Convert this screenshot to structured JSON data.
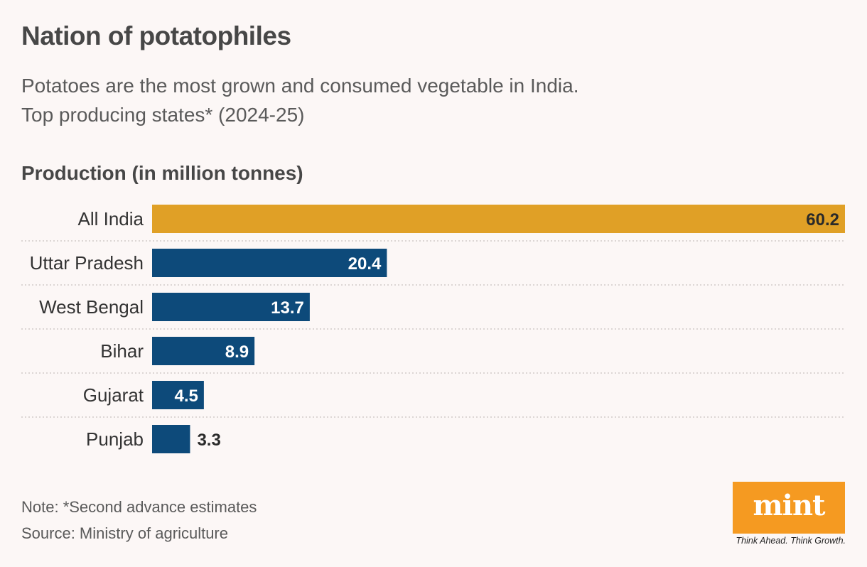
{
  "header": {
    "title": "Nation of potatophiles",
    "subtitle_line1": "Potatoes are the most grown and consumed vegetable in India.",
    "subtitle_line2": "Top producing states* (2024-25)"
  },
  "chart_data": {
    "type": "bar",
    "orientation": "horizontal",
    "title": "Production (in million tonnes)",
    "categories": [
      "All India",
      "Uttar Pradesh",
      "West Bengal",
      "Bihar",
      "Gujarat",
      "Punjab"
    ],
    "values": [
      60.2,
      20.4,
      13.7,
      8.9,
      4.5,
      3.3
    ],
    "value_labels": [
      "60.2",
      "20.4",
      "13.7",
      "8.9",
      "4.5",
      "3.3"
    ],
    "xlim": [
      0,
      60.2
    ],
    "colors": [
      "#e0a026",
      "#0d4a7a",
      "#0d4a7a",
      "#0d4a7a",
      "#0d4a7a",
      "#0d4a7a"
    ],
    "grid": false,
    "row_separators": true
  },
  "footer": {
    "note": "Note: *Second advance estimates",
    "source": "Source: Ministry of agriculture"
  },
  "brand": {
    "logo_text": "mint",
    "tagline": "Think Ahead. Think Growth.",
    "logo_color": "#f59a21"
  }
}
